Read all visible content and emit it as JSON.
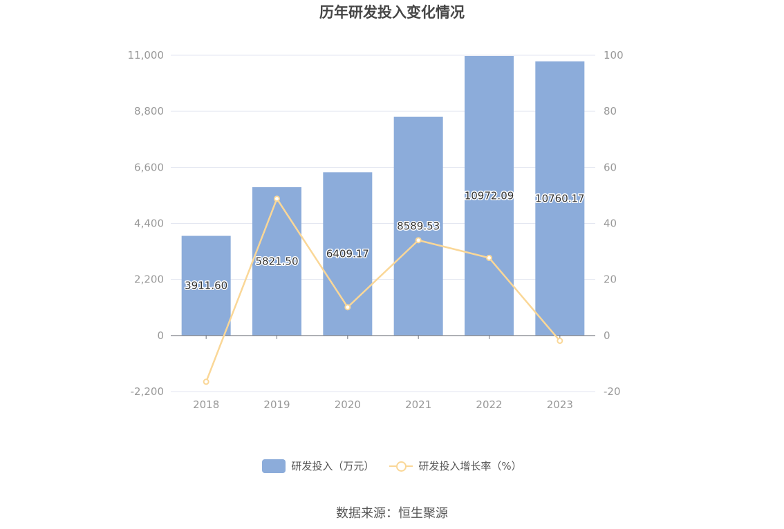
{
  "chart_data": {
    "type": "bar",
    "title": "历年研发投入变化情况",
    "categories": [
      "2018",
      "2019",
      "2020",
      "2021",
      "2022",
      "2023"
    ],
    "series": [
      {
        "name": "研发投入（万元）",
        "type": "bar",
        "axis": "left",
        "color": "#8cacda",
        "values": [
          3911.6,
          5821.5,
          6409.17,
          8589.53,
          10972.09,
          10760.17
        ],
        "data_labels": [
          "3911.60",
          "5821.50",
          "6409.17",
          "8589.53",
          "10972.09",
          "10760.17"
        ]
      },
      {
        "name": "研发投入增长率（%）",
        "type": "line",
        "axis": "right",
        "color": "#fad797",
        "values": [
          -16.5,
          48.8,
          10.1,
          34.0,
          27.7,
          -1.9
        ]
      }
    ],
    "y_left": {
      "ylim": [
        -2200,
        11000
      ],
      "ticks": [
        -2200,
        0,
        2200,
        4400,
        6600,
        8800,
        11000
      ],
      "tick_labels": [
        "-2,200",
        "0",
        "2,200",
        "4,400",
        "6,600",
        "8,800",
        "11,000"
      ]
    },
    "y_right": {
      "ylim": [
        -20,
        100
      ],
      "ticks": [
        -20,
        0,
        20,
        40,
        60,
        80,
        100
      ],
      "tick_labels": [
        "-20",
        "0",
        "20",
        "40",
        "60",
        "80",
        "100"
      ]
    },
    "grid": true,
    "legend_position": "bottom"
  },
  "source": "数据来源：恒生聚源"
}
